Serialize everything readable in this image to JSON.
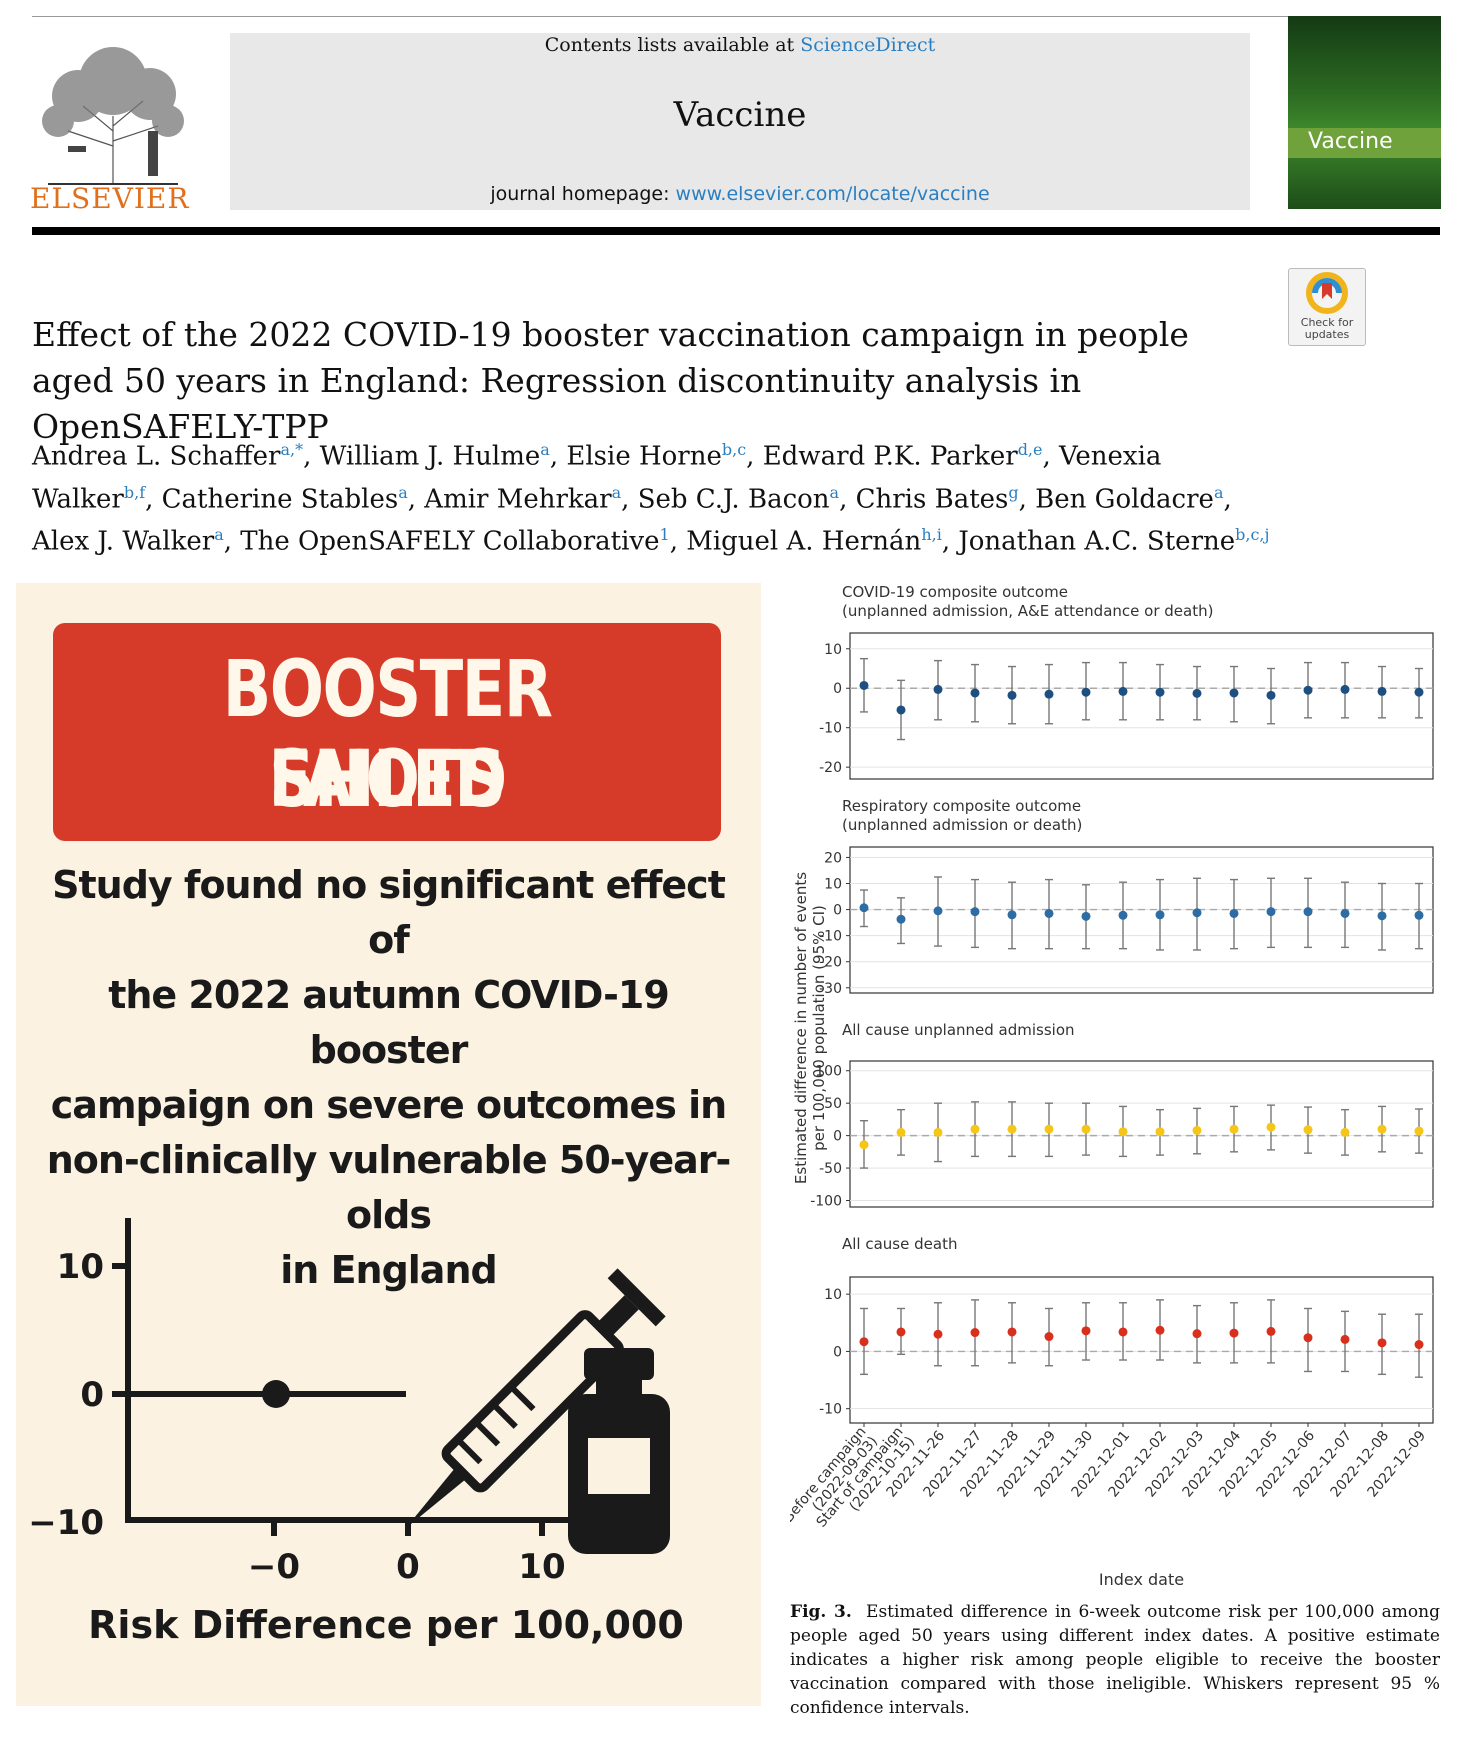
{
  "header": {
    "contents_prefix": "Contents lists available at ",
    "contents_link": "ScienceDirect",
    "journal_title": "Vaccine",
    "homepage_prefix": "journal homepage: ",
    "homepage_link": "www.elsevier.com/locate/vaccine",
    "publisher": "ELSEVIER",
    "cover_title": "Vaccine",
    "check_updates": "Check for updates"
  },
  "article": {
    "title": "Effect of the 2022 COVID-19 booster vaccination campaign in people aged 50 years in England: Regression discontinuity analysis in OpenSAFELY-TPP",
    "authors": [
      {
        "name": "Andrea L. Schaffer",
        "aff": "a,*"
      },
      {
        "name": "William J. Hulme",
        "aff": "a"
      },
      {
        "name": "Elsie Horne",
        "aff": "b,c"
      },
      {
        "name": "Edward P.K. Parker",
        "aff": "d,e"
      },
      {
        "name": "Venexia Walker",
        "aff": "b,f"
      },
      {
        "name": "Catherine Stables",
        "aff": "a"
      },
      {
        "name": "Amir Mehrkar",
        "aff": "a"
      },
      {
        "name": "Seb C.J. Bacon",
        "aff": "a"
      },
      {
        "name": "Chris Bates",
        "aff": "g"
      },
      {
        "name": "Ben Goldacre",
        "aff": "a"
      },
      {
        "name": "Alex J. Walker",
        "aff": "a"
      },
      {
        "name": "The OpenSAFELY Collaborative",
        "aff": "1"
      },
      {
        "name": "Miguel A. Hernán",
        "aff": "h,i"
      },
      {
        "name": "Jonathan A.C. Sterne",
        "aff": "b,c,j"
      }
    ]
  },
  "infographic": {
    "banner_line1": "BOOSTER SHOTS",
    "banner_line2": "FAILED",
    "text_lines": [
      "Study found no significant effect of",
      "the 2022 autumn COVID-19 booster",
      "campaign on severe outcomes in",
      "non-clinically vulnerable 50-year-olds",
      "in England"
    ],
    "plot": {
      "y_ticks": [
        "10",
        "0",
        "−10"
      ],
      "x_ticks": [
        "−0",
        "0",
        "10"
      ],
      "x_label": "Risk Difference per 100,000",
      "point": {
        "x": 0,
        "y": 0
      }
    }
  },
  "chart_data": {
    "type": "scatter",
    "y_axis_label": "Estimated difference in number of events per 100,000 population (95% CI)",
    "x_axis_label": "Index date",
    "categories": [
      "Before campaign (2022-09-03)",
      "Start of campaign (2022-10-15)",
      "2022-11-26",
      "2022-11-27",
      "2022-11-28",
      "2022-11-29",
      "2022-11-30",
      "2022-12-01",
      "2022-12-02",
      "2022-12-03",
      "2022-12-04",
      "2022-12-05",
      "2022-12-06",
      "2022-12-07",
      "2022-12-08",
      "2022-12-09"
    ],
    "panels": [
      {
        "title_line1": "COVID-19 composite outcome",
        "title_line2": "(unplanned admission, A&E attendance or death)",
        "color": "#1d4f80",
        "y_ticks": [
          10,
          0,
          -10,
          -20
        ],
        "ylim": [
          -23,
          14
        ],
        "estimates": [
          0.7,
          -5.5,
          -0.3,
          -1.2,
          -1.8,
          -1.5,
          -1.0,
          -0.8,
          -1.0,
          -1.3,
          -1.2,
          -1.8,
          -0.5,
          -0.3,
          -0.8,
          -1.0
        ],
        "lower": [
          -6,
          -13,
          -8,
          -8.5,
          -9,
          -9,
          -8,
          -8,
          -8,
          -8,
          -8.5,
          -9,
          -7.5,
          -7.5,
          -7.5,
          -7.5
        ],
        "upper": [
          7.5,
          2,
          7,
          6,
          5.5,
          6,
          6.5,
          6.5,
          6,
          5.5,
          5.5,
          5,
          6.5,
          6.5,
          5.5,
          5
        ]
      },
      {
        "title_line1": "Respiratory composite outcome",
        "title_line2": "(unplanned admission or death)",
        "color": "#2e6da4",
        "y_ticks": [
          20,
          10,
          0,
          -10,
          -20,
          -30
        ],
        "ylim": [
          -32,
          24
        ],
        "estimates": [
          0.7,
          -3.7,
          -0.5,
          -0.8,
          -2.0,
          -1.5,
          -2.6,
          -2.2,
          -2.0,
          -1.2,
          -1.5,
          -0.8,
          -0.8,
          -1.5,
          -2.4,
          -2.2
        ],
        "lower": [
          -6.5,
          -13,
          -14,
          -14.5,
          -15,
          -15,
          -15,
          -15,
          -15.5,
          -15.5,
          -15,
          -14.5,
          -14.5,
          -14.5,
          -15.5,
          -15
        ],
        "upper": [
          7.5,
          4.5,
          12.5,
          11.5,
          10.5,
          11.5,
          9.5,
          10.5,
          11.5,
          12,
          11.5,
          12,
          12,
          10.5,
          10,
          10
        ]
      },
      {
        "title_line1": "All cause unplanned admission",
        "title_line2": "",
        "color": "#f5c518",
        "y_ticks": [
          100,
          50,
          0,
          -50,
          -100
        ],
        "ylim": [
          -110,
          115
        ],
        "estimates": [
          -14,
          5,
          5,
          10,
          10,
          10,
          10,
          6,
          6,
          8,
          10,
          13,
          9,
          5,
          10,
          7
        ],
        "lower": [
          -50,
          -30,
          -40,
          -32,
          -32,
          -32,
          -30,
          -32,
          -30,
          -28,
          -25,
          -22,
          -27,
          -30,
          -25,
          -27
        ],
        "upper": [
          23,
          40,
          50,
          52,
          52,
          50,
          50,
          45,
          40,
          42,
          45,
          47,
          44,
          40,
          45,
          41
        ]
      },
      {
        "title_line1": "All cause death",
        "title_line2": "",
        "color": "#d8301c",
        "y_ticks": [
          10,
          0,
          -10
        ],
        "ylim": [
          -12.5,
          13
        ],
        "estimates": [
          1.7,
          3.4,
          3.0,
          3.3,
          3.4,
          2.6,
          3.6,
          3.4,
          3.7,
          3.1,
          3.2,
          3.5,
          2.4,
          2.1,
          1.5,
          1.2
        ],
        "lower": [
          -4,
          -0.5,
          -2.5,
          -2.5,
          -2,
          -2.5,
          -1.5,
          -1.5,
          -1.5,
          -2,
          -2,
          -2,
          -3.5,
          -3.5,
          -4,
          -4.5
        ],
        "upper": [
          7.5,
          7.5,
          8.5,
          9,
          8.5,
          7.5,
          8.5,
          8.5,
          9,
          8,
          8.5,
          9,
          7.5,
          7,
          6.5,
          6.5
        ]
      }
    ]
  },
  "caption": {
    "label": "Fig. 3.",
    "text": "Estimated difference in 6-week outcome risk per 100,000 among people aged 50 years using different index dates. A positive estimate indicates a higher risk among people eligible to receive the booster vaccination compared with those ineligible. Whiskers represent 95 % confidence intervals."
  }
}
